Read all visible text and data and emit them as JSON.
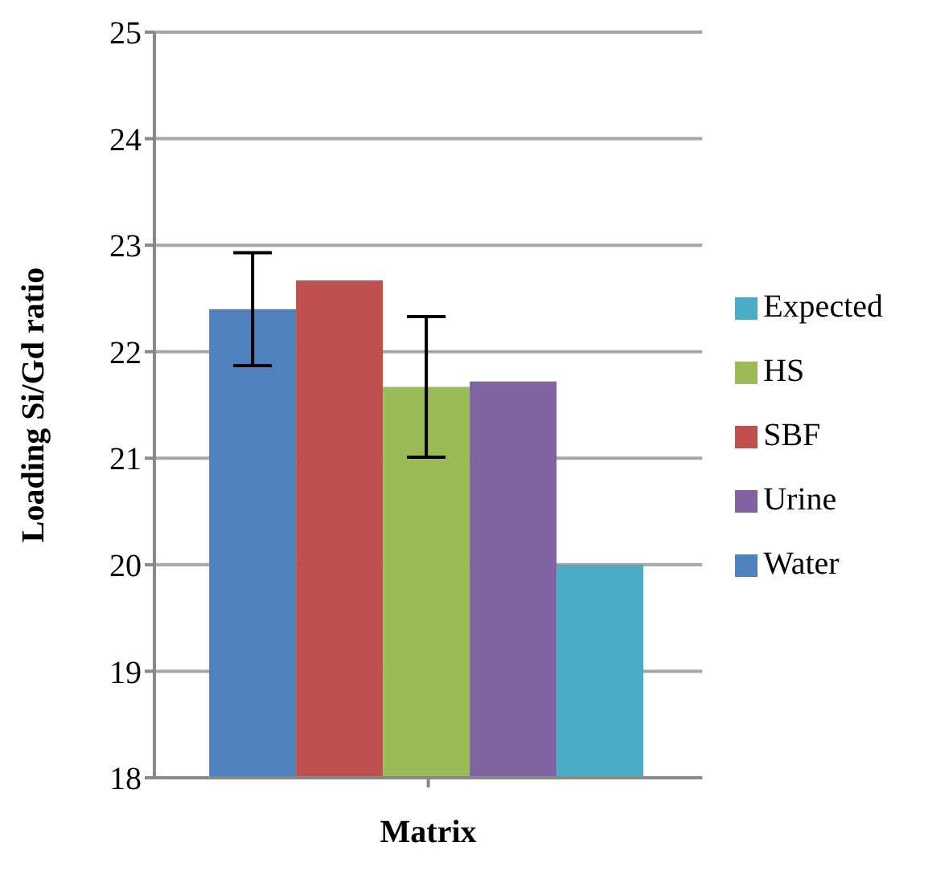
{
  "chart_data": {
    "type": "bar",
    "xlabel": "Matrix",
    "ylabel": "Loading Si/Gd ratio",
    "categories": [
      null
    ],
    "series": [
      {
        "name": "Water",
        "color": "#4f81bd",
        "values": [
          22.4
        ],
        "errors": [
          0.53
        ]
      },
      {
        "name": "SBF",
        "color": "#c0504d",
        "values": [
          22.67
        ]
      },
      {
        "name": "HS",
        "color": "#9bbb59",
        "values": [
          21.67
        ],
        "errors": [
          0.66
        ]
      },
      {
        "name": "Urine",
        "color": "#8064a2",
        "values": [
          21.72
        ]
      },
      {
        "name": "Expected",
        "color": "#4bacc6",
        "values": [
          20
        ]
      }
    ],
    "ylim": [
      18,
      25
    ],
    "yticks": [
      18,
      19,
      20,
      21,
      22,
      23,
      24,
      25
    ],
    "grid": "y",
    "legend": "right"
  }
}
